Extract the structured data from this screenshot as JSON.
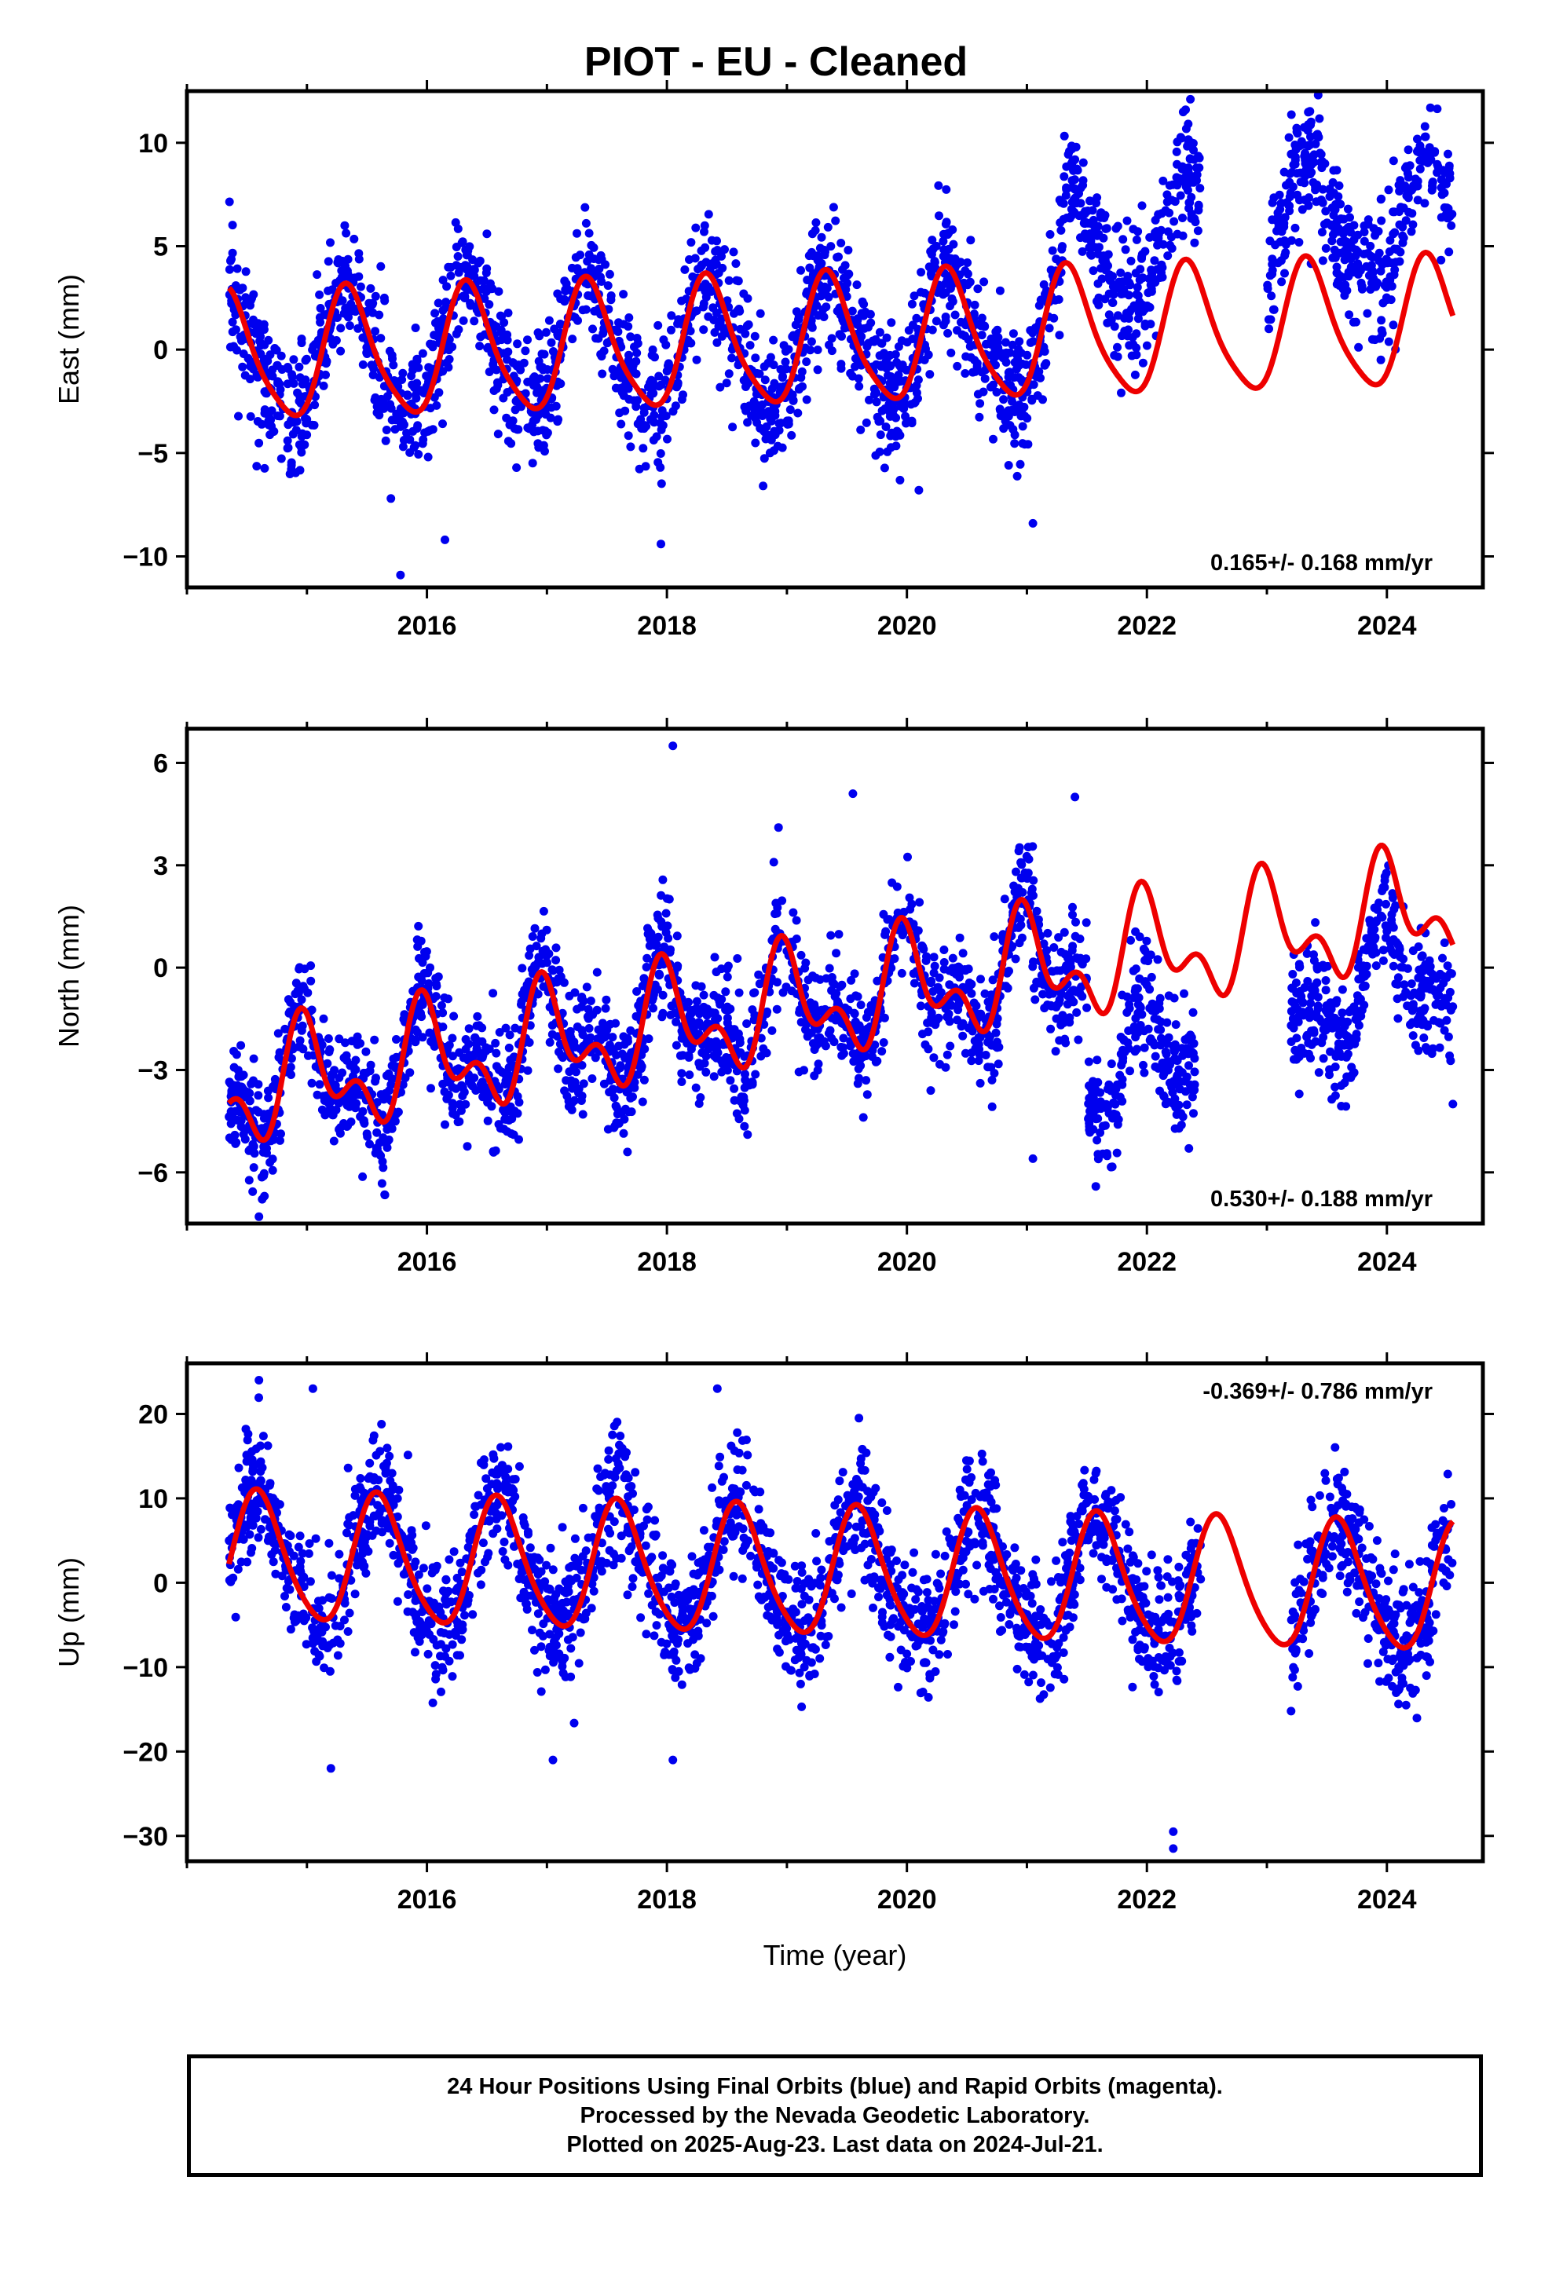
{
  "title": "PIOT  - EU - Cleaned",
  "xlabel": "Time (year)",
  "footer": {
    "lines": [
      "24 Hour Positions Using Final Orbits (blue) and Rapid Orbits (magenta).",
      "Processed by the Nevada Geodetic Laboratory.",
      "Plotted on 2025-Aug-23. Last data on 2024-Jul-21."
    ]
  },
  "colors": {
    "observations": "#0000ee",
    "model": "#ee0000",
    "axes": "#000000"
  },
  "chart_data": [
    {
      "type": "scatter",
      "panel": "east",
      "ylabel": "East (mm)",
      "rate": "0.165+/- 0.168 mm/yr",
      "rate_position": "bottom-right",
      "xlim": [
        2014.0,
        2024.8
      ],
      "ylim": [
        -11.5,
        12.5
      ],
      "xticks": [
        2016,
        2018,
        2020,
        2022,
        2024
      ],
      "yticks": [
        -10,
        -5,
        0,
        5,
        10
      ],
      "ytick_labels": [
        "−10",
        "−5",
        "0",
        "5",
        "10"
      ],
      "grid": false,
      "series": [
        {
          "role": "observations",
          "color": "#0000ee",
          "data_start": 2014.35,
          "data_end": 2024.55,
          "segments": [
            {
              "start": 2014.35,
              "end": 2021.3,
              "offset": 0.0
            },
            {
              "start": 2021.3,
              "end": 2022.45,
              "offset": 4.0
            },
            {
              "start": 2023.0,
              "end": 2024.55,
              "offset": 5.0
            }
          ],
          "outliers": [
            [
              2015.78,
              -10.9
            ],
            [
              2016.15,
              -9.2
            ],
            [
              2017.95,
              -9.4
            ],
            [
              2021.05,
              -8.4
            ],
            [
              2015.7,
              -7.2
            ],
            [
              2020.1,
              -6.8
            ],
            [
              2016.5,
              5.6
            ],
            [
              2022.3,
              5.5
            ],
            [
              2023.95,
              -0.5
            ]
          ]
        },
        {
          "role": "model",
          "color": "#ee0000",
          "fit": {
            "start": 2014.35,
            "end": 2024.55,
            "trend_mm_per_yr": 0.165,
            "mean": 0.4,
            "annual_amplitude": 3.05,
            "annual_peak": 2015.35,
            "semiannual_amplitude": 0.55
          }
        }
      ]
    },
    {
      "type": "scatter",
      "panel": "north",
      "ylabel": "North (mm)",
      "rate": "0.530+/- 0.188 mm/yr",
      "rate_position": "bottom-right",
      "xlim": [
        2014.0,
        2024.8
      ],
      "ylim": [
        -7.5,
        7.0
      ],
      "xticks": [
        2016,
        2018,
        2020,
        2022,
        2024
      ],
      "yticks": [
        -6,
        -3,
        0,
        3,
        6
      ],
      "ytick_labels": [
        "−6",
        "−3",
        "0",
        "3",
        "6"
      ],
      "grid": false,
      "series": [
        {
          "role": "observations",
          "color": "#0000ee",
          "data_start": 2014.35,
          "data_end": 2024.55,
          "segments": [
            {
              "start": 2014.35,
              "end": 2021.5,
              "offset": 0.0
            },
            {
              "start": 2021.5,
              "end": 2022.4,
              "offset": -3.2
            },
            {
              "start": 2023.2,
              "end": 2024.55,
              "offset": -2.0
            }
          ],
          "outliers": [
            [
              2014.6,
              -7.3
            ],
            [
              2018.05,
              6.5
            ],
            [
              2021.05,
              -5.6
            ],
            [
              2017.3,
              -4.3
            ],
            [
              2016.15,
              -4.6
            ],
            [
              2022.35,
              -5.3
            ],
            [
              2019.55,
              5.1
            ],
            [
              2021.4,
              5.0
            ],
            [
              2024.55,
              -4.0
            ]
          ]
        },
        {
          "role": "model",
          "color": "#ee0000",
          "fit": {
            "start": 2014.35,
            "end": 2024.55,
            "trend_mm_per_yr": 0.53,
            "mean": -0.9,
            "annual_amplitude": 1.3,
            "annual_peak": 2015.0,
            "semiannual_amplitude": 0.9
          }
        }
      ]
    },
    {
      "type": "scatter",
      "panel": "up",
      "ylabel": "Up (mm)",
      "rate": "-0.369+/- 0.786 mm/yr",
      "rate_position": "top-right",
      "xlim": [
        2014.0,
        2024.8
      ],
      "ylim": [
        -33.0,
        26.0
      ],
      "xticks": [
        2016,
        2018,
        2020,
        2022,
        2024
      ],
      "yticks": [
        -30,
        -20,
        -10,
        0,
        10,
        20
      ],
      "ytick_labels": [
        "−30",
        "−20",
        "−10",
        "0",
        "10",
        "20"
      ],
      "grid": false,
      "series": [
        {
          "role": "observations",
          "color": "#0000ee",
          "data_start": 2014.35,
          "data_end": 2024.55,
          "segments": [
            {
              "start": 2014.35,
              "end": 2022.45,
              "offset": 0.0
            },
            {
              "start": 2023.2,
              "end": 2024.55,
              "offset": 0.0
            }
          ],
          "outliers": [
            [
              2014.6,
              24.0
            ],
            [
              2018.42,
              23.0
            ],
            [
              2022.22,
              -31.5
            ],
            [
              2022.22,
              -29.5
            ],
            [
              2015.2,
              -22.0
            ],
            [
              2015.05,
              23.0
            ],
            [
              2019.6,
              19.5
            ],
            [
              2017.05,
              -21.0
            ],
            [
              2018.05,
              -21.0
            ]
          ]
        },
        {
          "role": "model",
          "color": "#ee0000",
          "fit": {
            "start": 2014.35,
            "end": 2024.55,
            "trend_mm_per_yr": -0.369,
            "mean": 1.0,
            "annual_amplitude": 7.5,
            "annual_peak": 2014.6,
            "semiannual_amplitude": 1.0
          }
        }
      ]
    }
  ]
}
